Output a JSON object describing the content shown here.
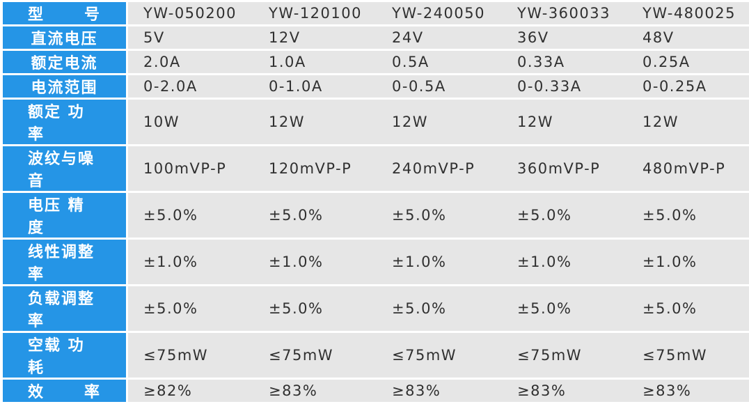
{
  "rows": [
    {
      "head_chars": [
        "型",
        "号"
      ],
      "values": [
        "YW-050200",
        "YW-120100",
        "YW-240050",
        "YW-360033",
        "YW-480025"
      ]
    },
    {
      "head_chars": [
        "直流电压"
      ],
      "values": [
        "5V",
        "12V",
        "24V",
        "36V",
        "48V"
      ]
    },
    {
      "head_chars": [
        "额定电流"
      ],
      "values": [
        "2.0A",
        "1.0A",
        "0.5A",
        "0.33A",
        "0.25A"
      ]
    },
    {
      "head_chars": [
        "电流范围"
      ],
      "values": [
        "0-2.0A",
        "0-1.0A",
        "0-0.5A",
        "0-0.33A",
        "0-0.25A"
      ]
    },
    {
      "head_chars": [
        "额定 功率"
      ],
      "values": [
        "10W",
        "12W",
        "12W",
        "12W",
        "12W"
      ]
    },
    {
      "head_chars": [
        "波纹与噪音"
      ],
      "values": [
        "100mVP-P",
        "120mVP-P",
        "240mVP-P",
        "360mVP-P",
        "480mVP-P"
      ]
    },
    {
      "head_chars": [
        "电压 精度"
      ],
      "values": [
        "±5.0%",
        "±5.0%",
        "±5.0%",
        "±5.0%",
        "±5.0%"
      ]
    },
    {
      "head_chars": [
        "线性调整率"
      ],
      "values": [
        "±1.0%",
        "±1.0%",
        "±1.0%",
        "±1.0%",
        "±1.0%"
      ]
    },
    {
      "head_chars": [
        "负载调整率"
      ],
      "values": [
        "±5.0%",
        "±5.0%",
        "±5.0%",
        "±5.0%",
        "±5.0%"
      ]
    },
    {
      "head_chars": [
        "空载 功耗"
      ],
      "values": [
        "≤75mW",
        "≤75mW",
        "≤75mW",
        "≤75mW",
        "≤75mW"
      ]
    },
    {
      "head_chars": [
        "效",
        "率"
      ],
      "values": [
        "≥82%",
        "≥83%",
        "≥83%",
        "≥83%",
        "≥83%"
      ]
    }
  ]
}
